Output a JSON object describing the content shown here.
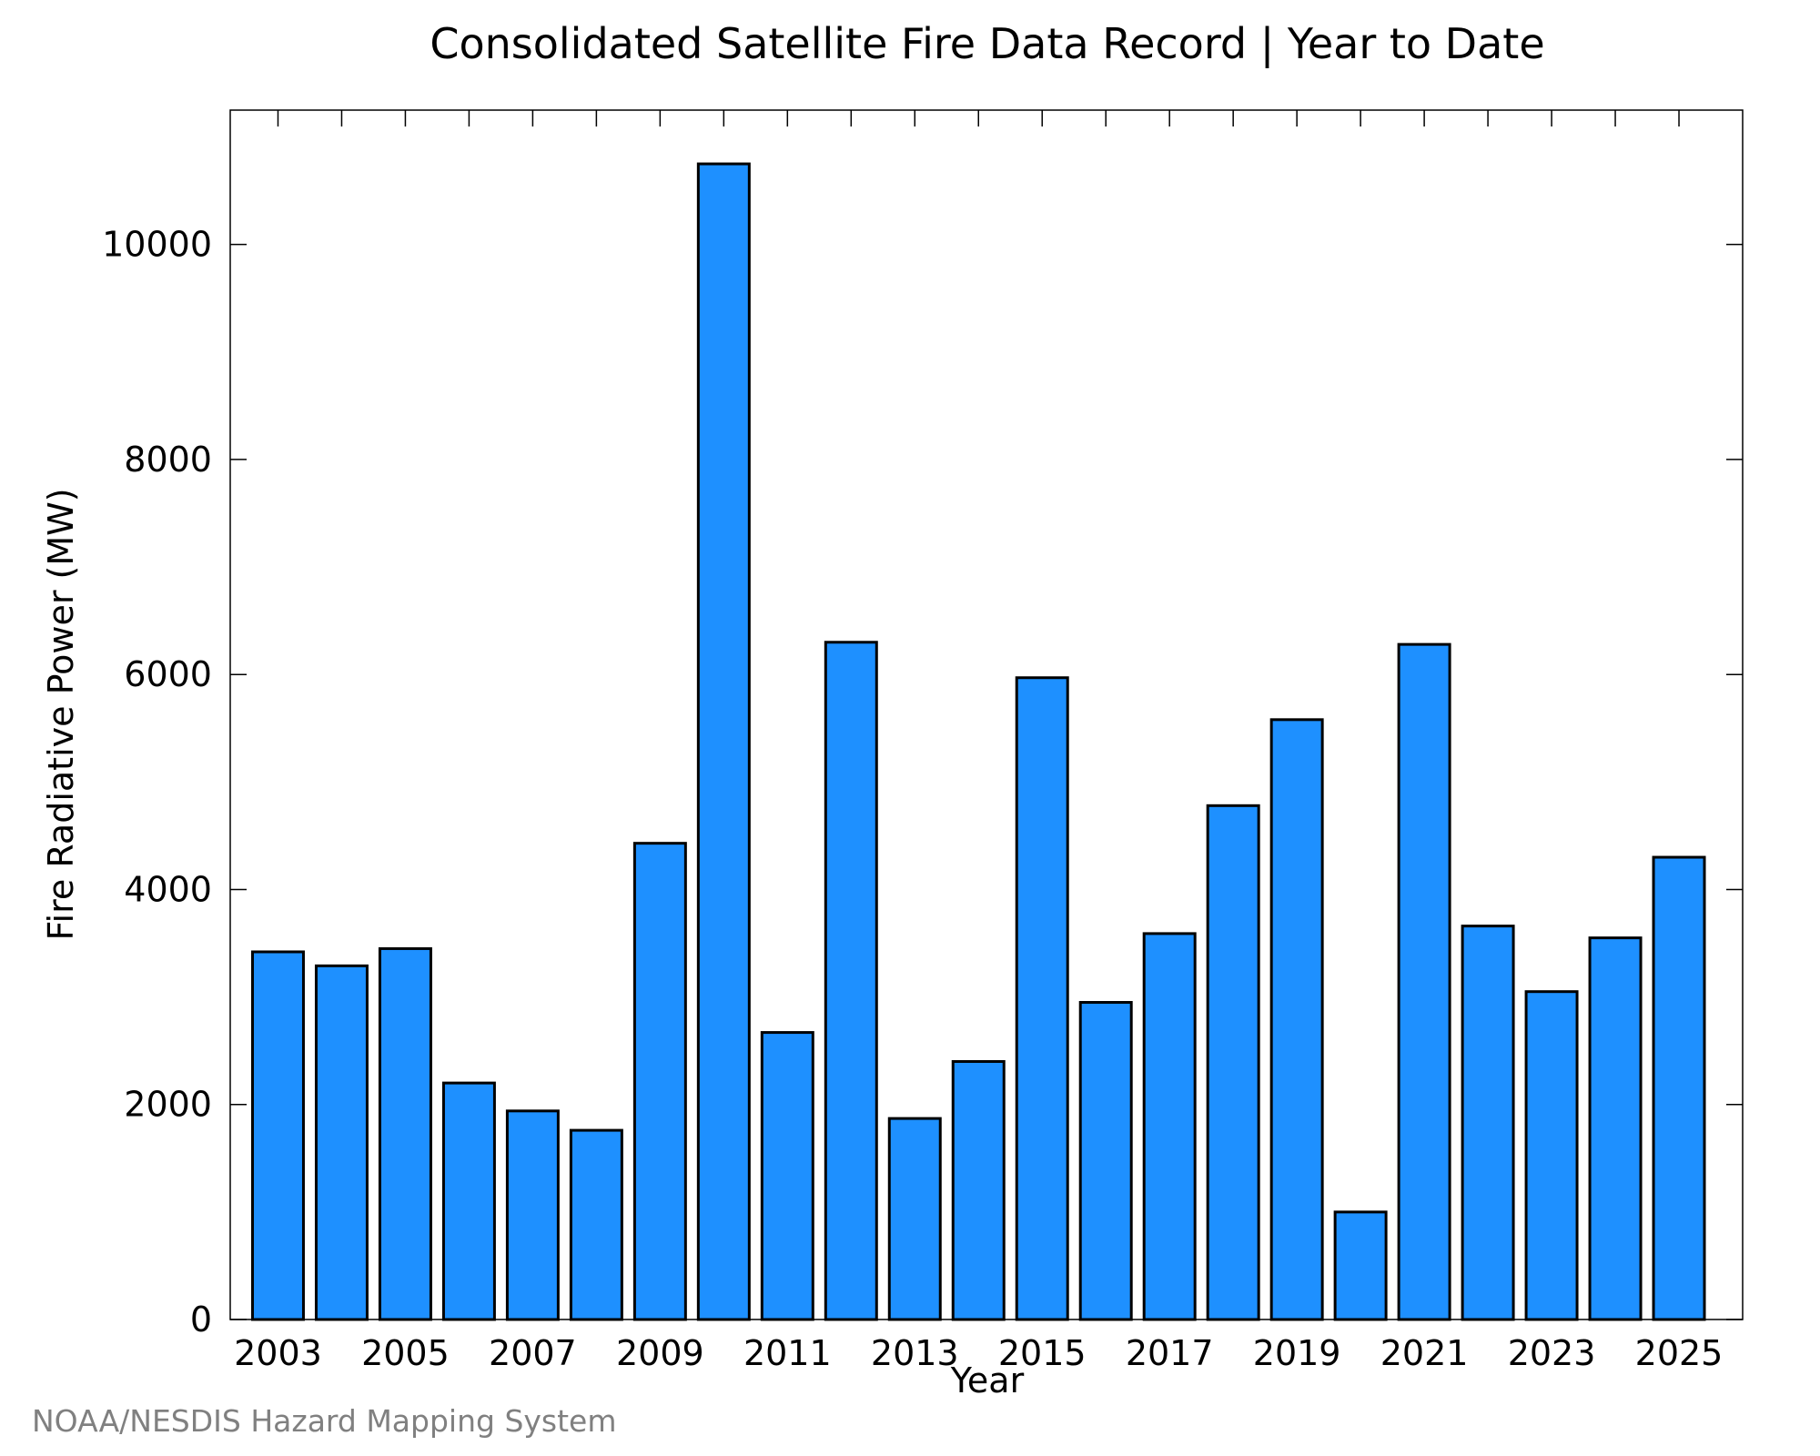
{
  "chart_data": {
    "type": "bar",
    "title": "Consolidated Satellite Fire Data Record | Year to Date",
    "xlabel": "Year",
    "ylabel": "Fire Radiative Power (MW)",
    "credit": "NOAA/NESDIS Hazard Mapping System",
    "categories": [
      2003,
      2004,
      2005,
      2006,
      2007,
      2008,
      2009,
      2010,
      2011,
      2012,
      2013,
      2014,
      2015,
      2016,
      2017,
      2018,
      2019,
      2020,
      2021,
      2022,
      2023,
      2024,
      2025
    ],
    "values": [
      3420,
      3290,
      3450,
      2200,
      1940,
      1760,
      4430,
      10750,
      2670,
      6300,
      1870,
      2400,
      5970,
      2950,
      3590,
      4780,
      5580,
      1000,
      6280,
      3660,
      3050,
      3550,
      4300
    ],
    "x_tick_labels": [
      "2003",
      "2005",
      "2007",
      "2009",
      "2011",
      "2013",
      "2015",
      "2017",
      "2019",
      "2021",
      "2023",
      "2025"
    ],
    "y_ticks": [
      0,
      2000,
      4000,
      6000,
      8000,
      10000
    ],
    "ylim": [
      0,
      11250
    ],
    "xlim": [
      2002.25,
      2026
    ],
    "bar_width_years": 0.8,
    "grid": false,
    "legend": "none",
    "bar_color": "#1e90ff",
    "edge_color": "#000000"
  }
}
